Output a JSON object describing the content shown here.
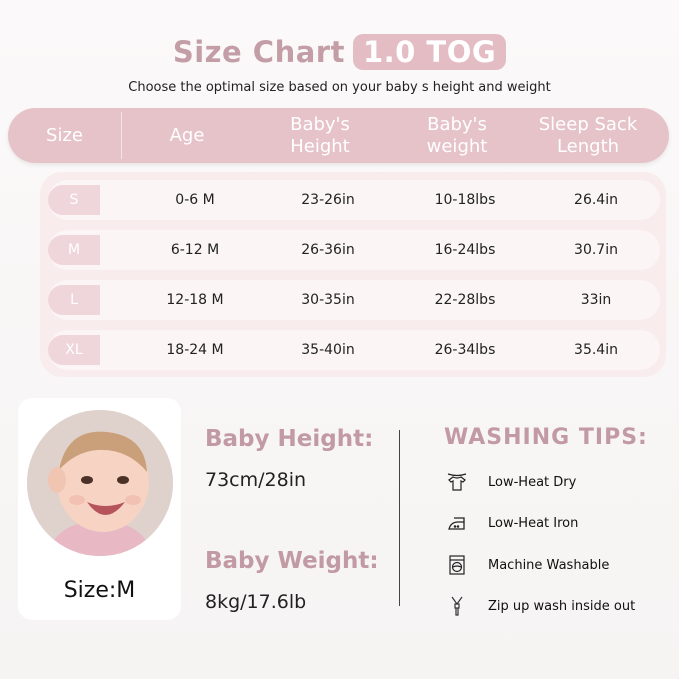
{
  "title": {
    "text": "Size Chart",
    "badge": "1.0 TOG"
  },
  "subtitle": "Choose the optimal size based on your baby  s height and weight",
  "table": {
    "headers": [
      "Size",
      "Age",
      "Baby's\nHeight",
      "Baby's\nweight",
      "Sleep Sack\nLength"
    ],
    "rows": [
      [
        "S",
        "0-6 M",
        "23-26in",
        "10-18lbs",
        "26.4in"
      ],
      [
        "M",
        "6-12 M",
        "26-36in",
        "16-24lbs",
        "30.7in"
      ],
      [
        "L",
        "12-18 M",
        "30-35in",
        "22-28lbs",
        "33in"
      ],
      [
        "XL",
        "18-24 M",
        "35-40in",
        "26-34lbs",
        "35.4in"
      ]
    ]
  },
  "model": {
    "size_label": "Size:M",
    "height_label": "Baby Height:",
    "height_value": "73cm/28in",
    "weight_label": "Baby Weight:",
    "weight_value": "8kg/17.6lb"
  },
  "washing": {
    "title": "WASHING TIPS:",
    "tips": [
      {
        "icon": "hanging-shirt-icon",
        "label": "Low-Heat Dry"
      },
      {
        "icon": "iron-icon",
        "label": "Low-Heat Iron"
      },
      {
        "icon": "washing-machine-icon",
        "label": "Machine Washable"
      },
      {
        "icon": "zipper-icon",
        "label": "Zip up wash inside out"
      }
    ]
  },
  "colors": {
    "accent": "#c29aa3",
    "header": "#e5c3c9",
    "badge": "#e3bcc4"
  }
}
